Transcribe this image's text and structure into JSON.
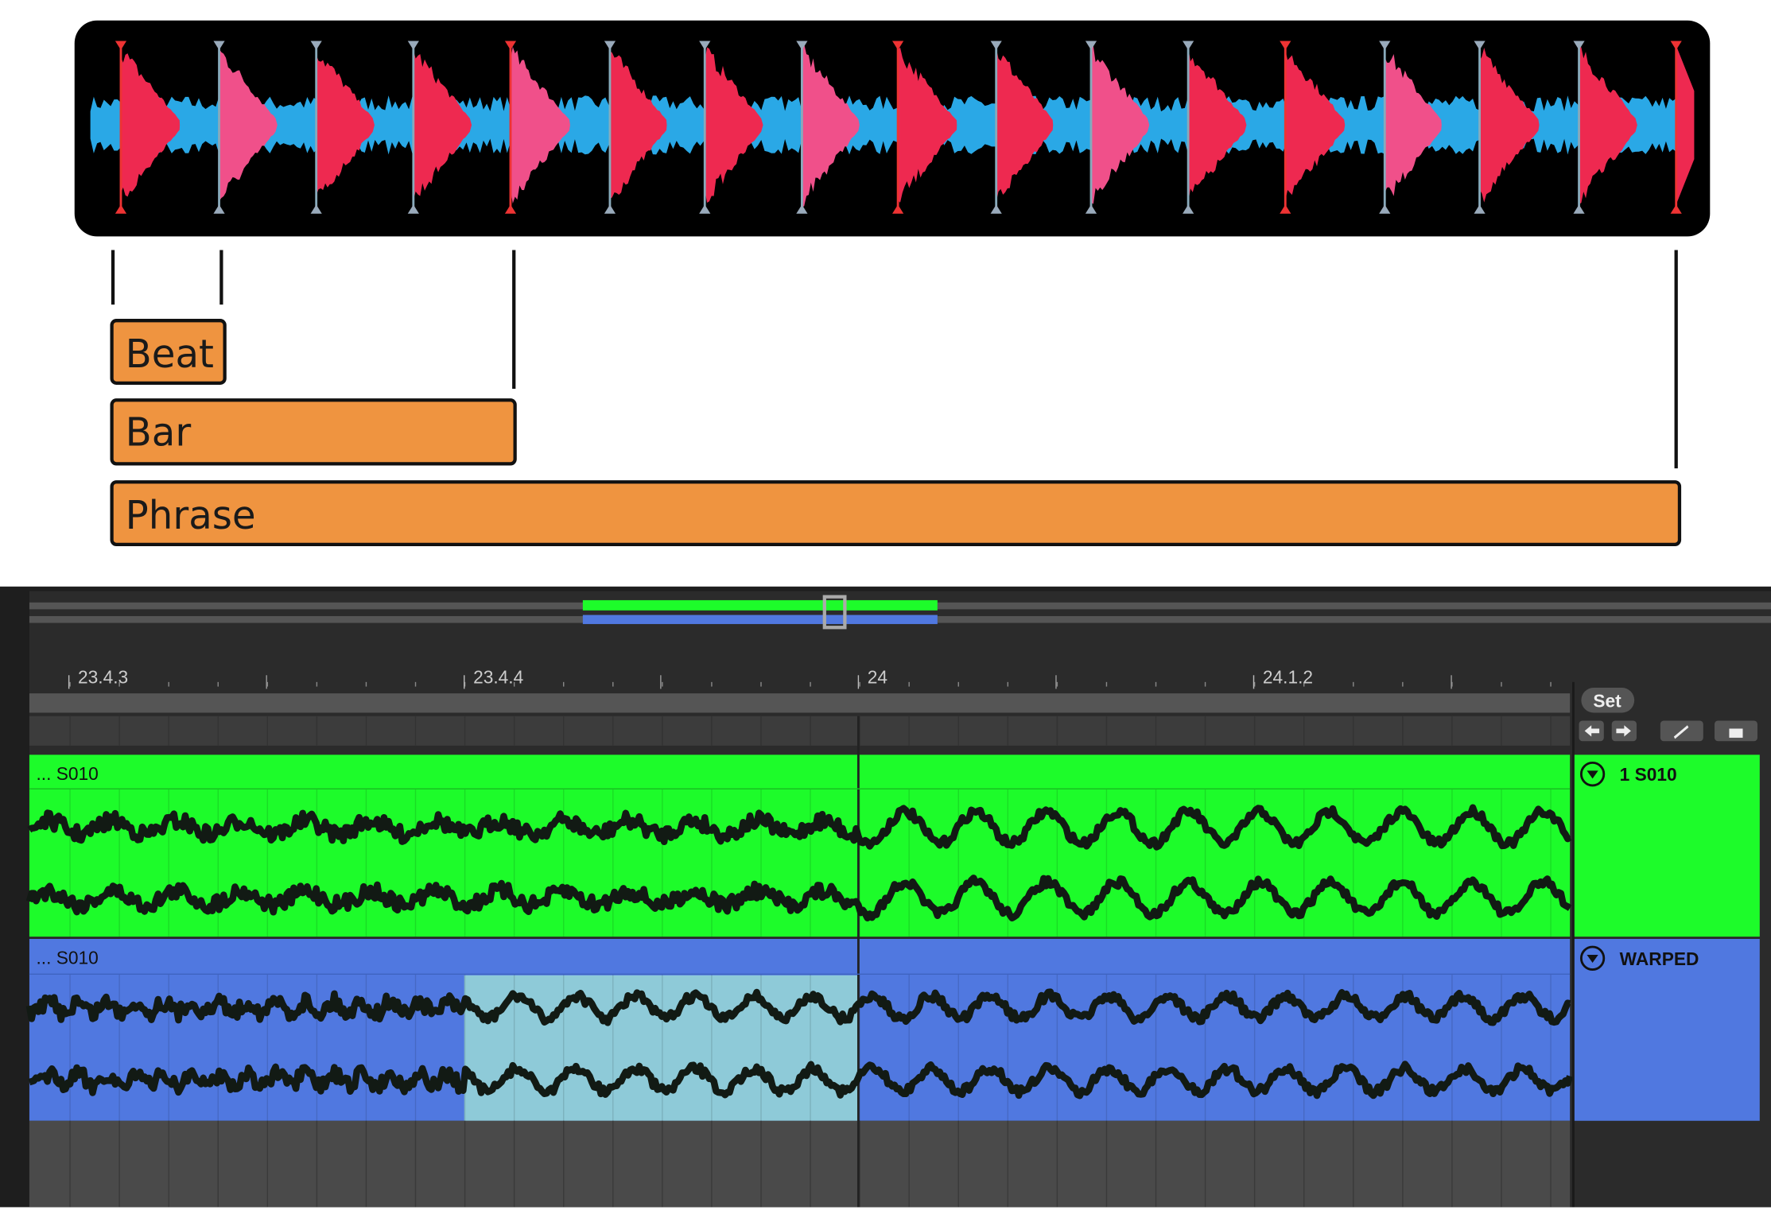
{
  "diagram": {
    "labels": [
      "Beat",
      "Bar",
      "Phrase"
    ]
  },
  "daw": {
    "ruler": [
      "23.4.3",
      "23.4.4",
      "24",
      "24.1.2"
    ],
    "set_button": "Set",
    "tracks": [
      {
        "clip": "... S010",
        "name": "1 S010"
      },
      {
        "clip": "... S010",
        "name": "WARPED"
      }
    ]
  }
}
